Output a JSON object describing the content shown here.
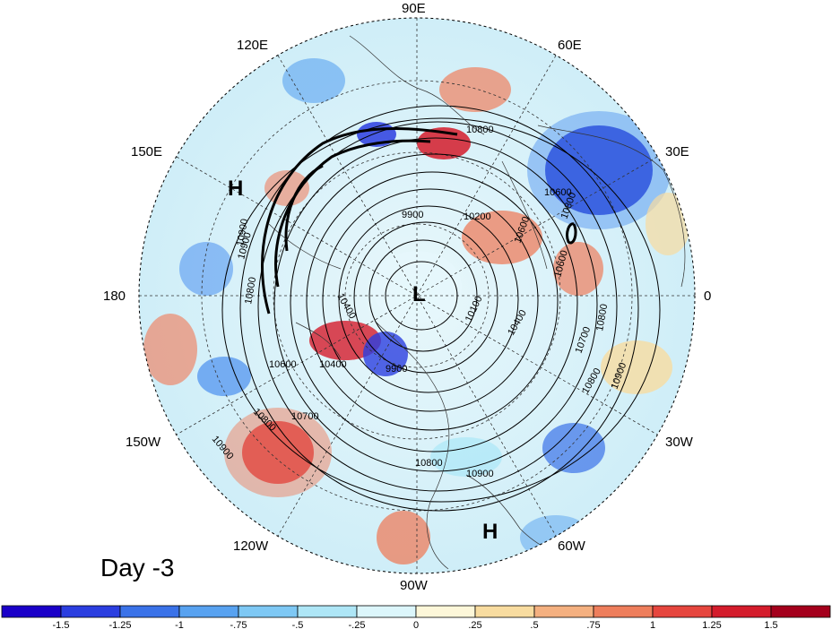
{
  "map": {
    "longitude_labels": {
      "top": "90E",
      "top_right": "60E",
      "right_upper": "30E",
      "right": "0",
      "right_lower": "30W",
      "bottom_right": "60W",
      "bottom": "90W",
      "bottom_left": "120W",
      "left_lower": "150W",
      "left": "180",
      "left_upper": "150E",
      "top_left": "120E"
    },
    "pressure_marks": {
      "high_west": "H",
      "low_center": "L",
      "high_south": "H"
    },
    "contour_labels": [
      "10800",
      "10600",
      "10900",
      "10800",
      "9900",
      "10200",
      "10800",
      "10600",
      "10600",
      "10800",
      "9900",
      "10400",
      "10100",
      "10400",
      "10700",
      "10400",
      "10600",
      "10800",
      "10700",
      "10900",
      "10800",
      "10900",
      "10800",
      "10900",
      "10900"
    ],
    "anomaly_colors": {
      "strong_negative": "#1a00c8",
      "negative": "#4a8ff0",
      "weak_negative": "#b0e8f8",
      "neutral": "#ffffff",
      "weak_positive": "#f8e0a8",
      "positive": "#f08060",
      "strong_positive": "#c8102e"
    }
  },
  "day_label": "Day -3",
  "colorbar": {
    "labels": [
      "-1.5",
      "-1.25",
      "-1",
      "-.75",
      "-.5",
      "-.25",
      "0",
      ".25",
      ".5",
      ".75",
      "1",
      "1.25",
      "1.5"
    ],
    "colors": [
      "#1a00c8",
      "#2b3ee0",
      "#3a72e8",
      "#58a2f0",
      "#7ec8f4",
      "#aee6f6",
      "#dcf6fb",
      "#fdf7d9",
      "#f8dca0",
      "#f4b080",
      "#ee7e5c",
      "#e6463e",
      "#d41c2c",
      "#a4001c"
    ]
  }
}
